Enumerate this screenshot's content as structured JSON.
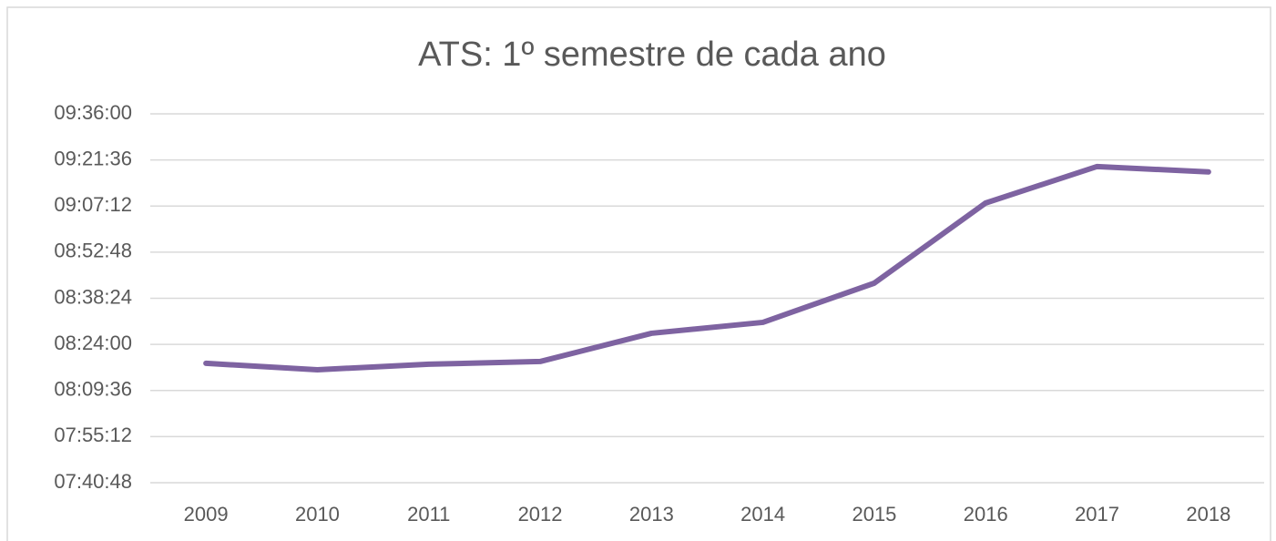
{
  "chart_data": {
    "type": "line",
    "title": "ATS: 1º semestre de cada ano",
    "categories": [
      "2009",
      "2010",
      "2011",
      "2012",
      "2013",
      "2014",
      "2015",
      "2016",
      "2017",
      "2018"
    ],
    "series": [
      {
        "color": "#7e63a1",
        "values": [
          29885,
          29765,
          29868,
          29919,
          30448,
          30653,
          31388,
          32890,
          33573,
          33471
        ]
      }
    ],
    "ylim": [
      27648,
      34560
    ],
    "yticks": [
      {
        "value": 27648,
        "label": "07:40:48"
      },
      {
        "value": 28512,
        "label": "07:55:12"
      },
      {
        "value": 29376,
        "label": "08:09:36"
      },
      {
        "value": 30240,
        "label": "08:24:00"
      },
      {
        "value": 31104,
        "label": "08:38:24"
      },
      {
        "value": 31968,
        "label": "08:52:48"
      },
      {
        "value": 32832,
        "label": "09:07:12"
      },
      {
        "value": 33696,
        "label": "09:21:36"
      },
      {
        "value": 34560,
        "label": "09:36:00"
      }
    ],
    "grid": true
  }
}
